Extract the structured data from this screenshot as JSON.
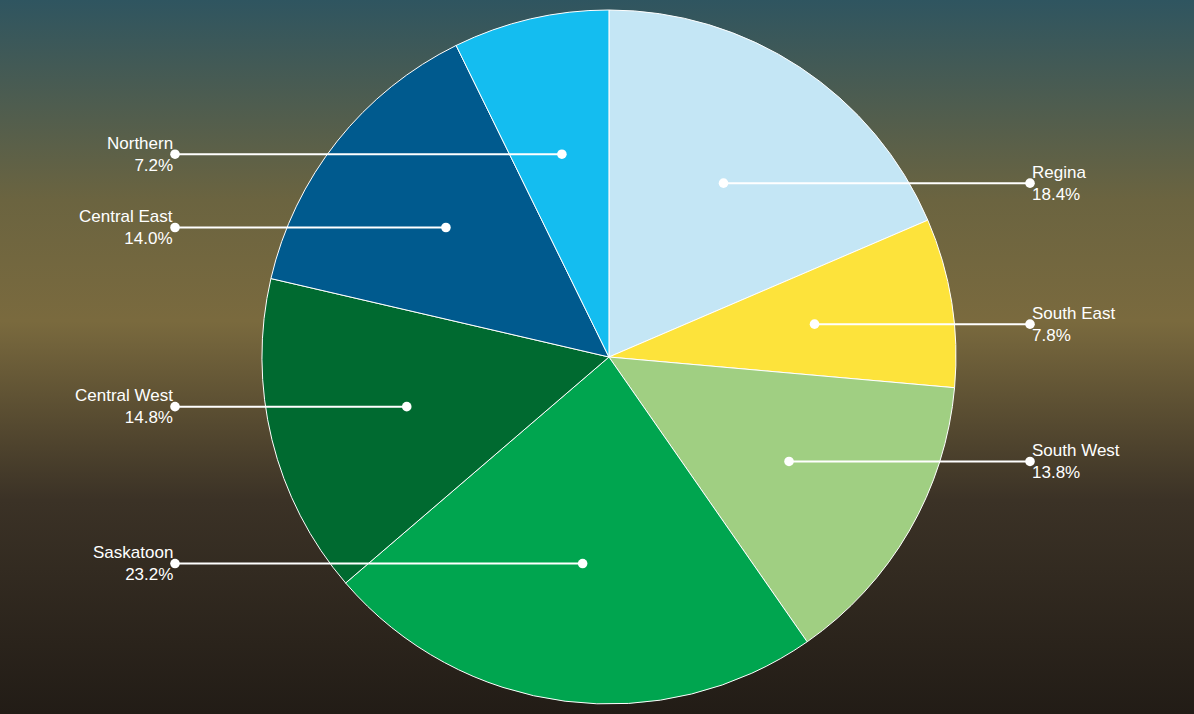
{
  "chart_data": {
    "type": "pie",
    "categories": [
      "Regina",
      "South East",
      "South West",
      "Saskatoon",
      "Central West",
      "Central East",
      "Northern"
    ],
    "values": [
      18.4,
      7.8,
      13.8,
      23.2,
      14.8,
      14.0,
      7.2
    ],
    "value_labels": [
      "18.4%",
      "7.8%",
      "13.8%",
      "23.2%",
      "14.8%",
      "14.0%",
      "7.2%"
    ],
    "colors": [
      "#c4e6f5",
      "#fde33b",
      "#a0cf82",
      "#00a54f",
      "#006a30",
      "#005a8e",
      "#14bdf0"
    ],
    "data_labels": true
  }
}
